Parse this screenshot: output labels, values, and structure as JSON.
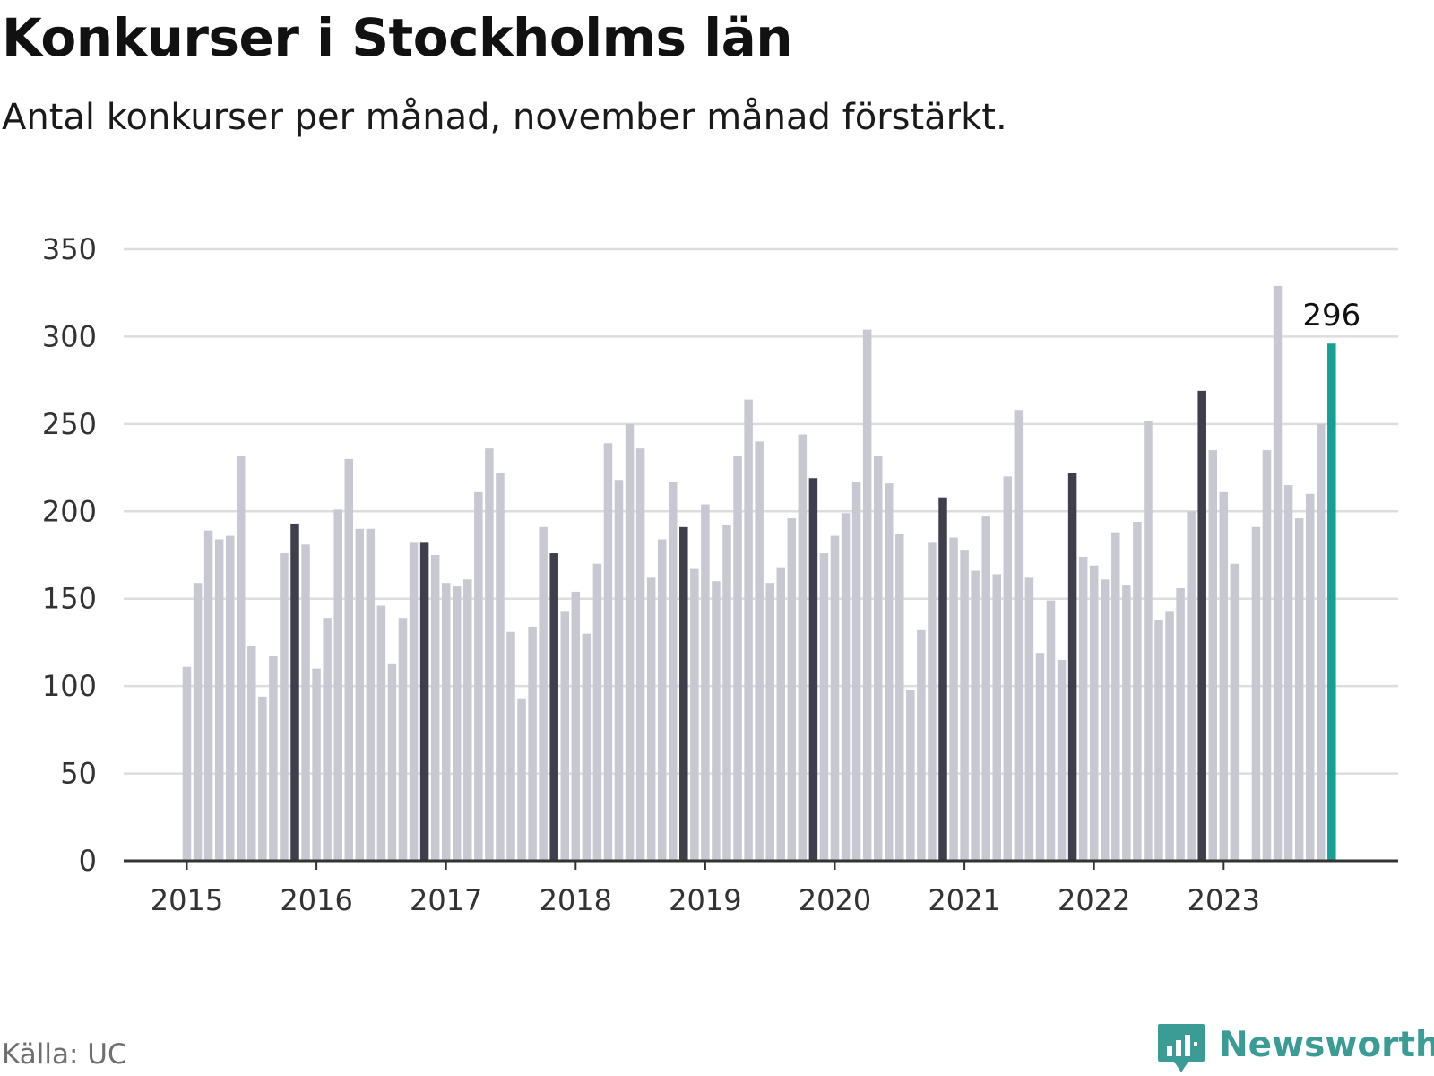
{
  "title": "Konkurser i Stockholms län",
  "subtitle": "Antal konkurser per månad, november månad förstärkt.",
  "source": "Källa: UC",
  "brand": {
    "name": "Newsworthy",
    "icon": "bar-chart-speech-bubble-icon",
    "color": "#3a9c95"
  },
  "colors": {
    "default_bar": "#c8c8d2",
    "highlight_bar": "#3e3e4c",
    "latest_bar": "#14a093",
    "grid": "#dddddd",
    "axis": "#333333"
  },
  "chart_data": {
    "type": "bar",
    "title": "Konkurser i Stockholms län",
    "subtitle": "Antal konkurser per månad, november månad förstärkt.",
    "xlabel": "",
    "ylabel": "",
    "ylim": [
      0,
      350
    ],
    "yticks": [
      0,
      50,
      100,
      150,
      200,
      250,
      300,
      350
    ],
    "grid": true,
    "start": "2015-01",
    "x_tick_labels": [
      "2015",
      "2016",
      "2017",
      "2018",
      "2019",
      "2020",
      "2021",
      "2022",
      "2023"
    ],
    "highlight_month": "november",
    "annotation": {
      "label": "296",
      "month": "2023-11"
    },
    "series": [
      {
        "values": [
          111,
          159,
          189,
          184,
          186,
          232,
          123,
          94,
          117,
          176,
          193,
          181,
          110,
          139,
          201,
          230,
          190,
          190,
          146,
          113,
          139,
          182,
          182,
          175,
          159,
          157,
          161,
          211,
          236,
          222,
          131,
          93,
          134,
          191,
          176,
          143,
          154,
          130,
          170,
          239,
          218,
          250,
          236,
          162,
          184,
          217,
          191,
          167,
          204,
          160,
          192,
          232,
          264,
          240,
          159,
          168,
          196,
          244,
          219,
          176,
          186,
          199,
          217,
          304,
          232,
          216,
          187,
          98,
          132,
          182,
          208,
          185,
          178,
          166,
          197,
          164,
          220,
          258,
          162,
          119,
          149,
          115,
          222,
          174,
          169,
          161,
          188,
          158,
          194,
          252,
          138,
          143,
          156,
          200,
          269,
          235,
          211,
          170,
          0,
          191,
          235,
          329,
          215,
          196,
          210,
          250,
          296
        ]
      }
    ]
  }
}
